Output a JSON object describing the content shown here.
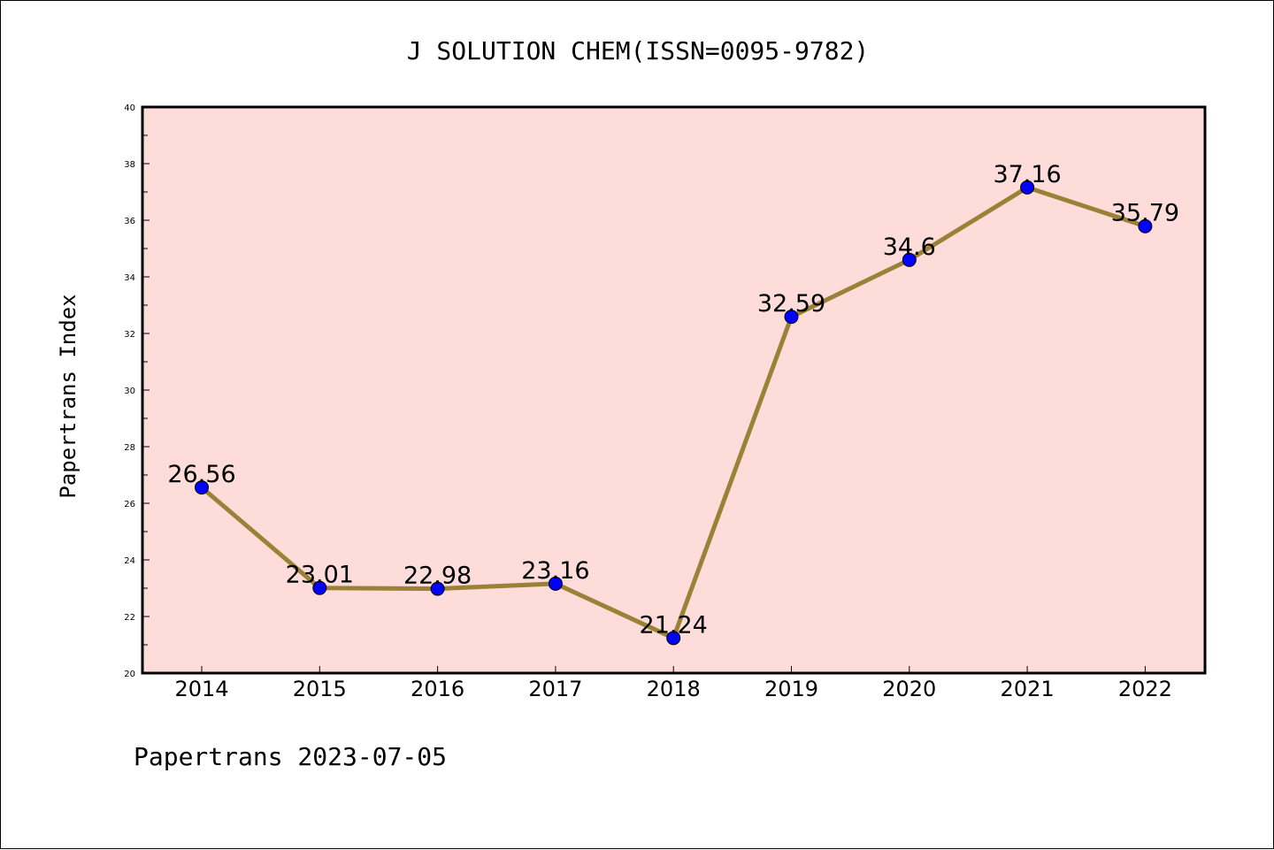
{
  "chart_data": {
    "type": "line",
    "title": "J SOLUTION CHEM(ISSN=0095-9782)",
    "xlabel": "",
    "ylabel": "Papertrans Index",
    "categories": [
      "2014",
      "2015",
      "2016",
      "2017",
      "2018",
      "2019",
      "2020",
      "2021",
      "2022"
    ],
    "values": [
      26.56,
      23.01,
      22.98,
      23.16,
      21.24,
      32.59,
      34.6,
      37.16,
      35.79
    ],
    "data_labels": [
      "26.56",
      "23.01",
      "22.98",
      "23.16",
      "21.24",
      "32.59",
      "34.6",
      "37.16",
      "35.79"
    ],
    "ylim": [
      20,
      40
    ],
    "yticks": [
      20,
      22,
      24,
      26,
      28,
      30,
      32,
      34,
      36,
      38,
      40
    ],
    "ytick_labels": [
      "20",
      "22",
      "24",
      "26",
      "28",
      "30",
      "32",
      "34",
      "36",
      "38",
      "40"
    ],
    "grid": false,
    "colors": {
      "plot_background": "#FDDCDA",
      "line": "#9A8136",
      "marker": "#0000FF"
    }
  },
  "footer": "Papertrans 2023-07-05"
}
